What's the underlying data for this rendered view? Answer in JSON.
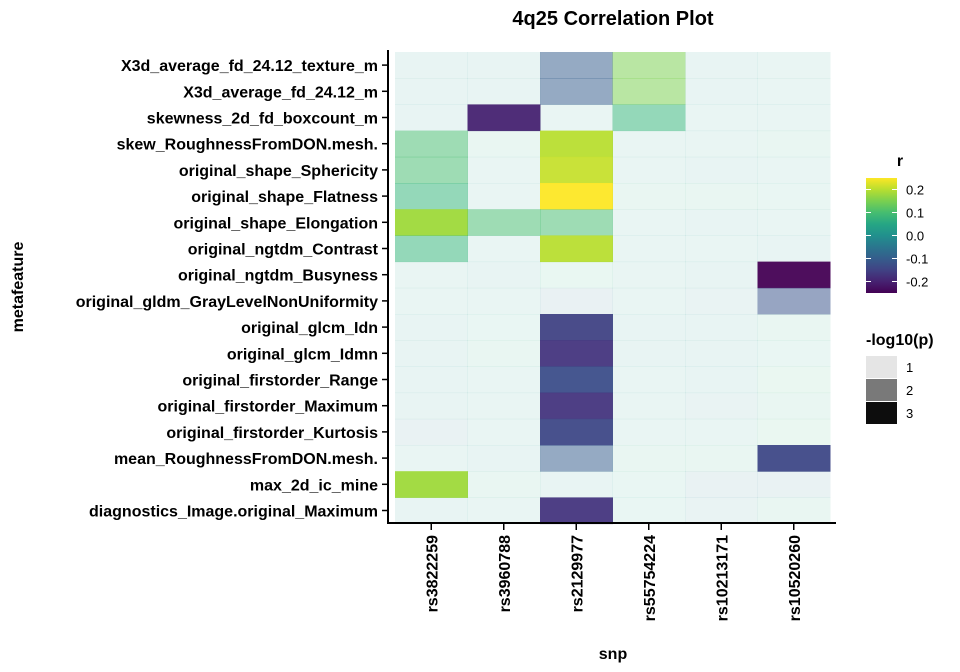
{
  "chart_data": {
    "type": "heatmap",
    "title": "4q25 Correlation Plot",
    "xlabel": "snp",
    "ylabel": "metafeature",
    "x": [
      "rs3822259",
      "rs3960788",
      "rs2129977",
      "rs55754224",
      "rs10213171",
      "rs10520260"
    ],
    "y": [
      "X3d_average_fd_24.12_texture_m",
      "X3d_average_fd_24.12_m",
      "skewness_2d_fd_boxcount_m",
      "skew_RoughnessFromDON.mesh.",
      "original_shape_Sphericity",
      "original_shape_Flatness",
      "original_shape_Elongation",
      "original_ngtdm_Contrast",
      "original_ngtdm_Busyness",
      "original_gldm_GrayLevelNonUniformity",
      "original_glcm_Idn",
      "original_glcm_Idmn",
      "original_firstorder_Range",
      "original_firstorder_Maximum",
      "original_firstorder_Kurtosis",
      "mean_RoughnessFromDON.mesh.",
      "max_2d_ic_mine",
      "diagnostics_Image.original_Maximum"
    ],
    "r_values": [
      [
        0.01,
        0.0,
        -0.1,
        0.15,
        0.01,
        0.02
      ],
      [
        0.01,
        0.0,
        -0.1,
        0.15,
        0.01,
        0.02
      ],
      [
        0.0,
        -0.2,
        0.03,
        0.08,
        0.02,
        0.02
      ],
      [
        0.1,
        0.05,
        0.2,
        0.03,
        0.02,
        0.06
      ],
      [
        0.1,
        0.02,
        0.21,
        0.03,
        0.01,
        0.02
      ],
      [
        0.08,
        0.02,
        0.25,
        0.06,
        0.06,
        0.04
      ],
      [
        0.18,
        0.1,
        0.1,
        0.02,
        0.01,
        0.02
      ],
      [
        0.08,
        0.02,
        0.2,
        0.02,
        0.02,
        0.0
      ],
      [
        0.02,
        0.0,
        0.07,
        0.02,
        0.0,
        -0.25
      ],
      [
        0.02,
        0.02,
        -0.06,
        0.02,
        -0.01,
        -0.12
      ],
      [
        0.0,
        0.04,
        -0.15,
        0.01,
        0.01,
        0.05
      ],
      [
        0.0,
        0.06,
        -0.17,
        0.01,
        0.01,
        0.04
      ],
      [
        0.0,
        0.03,
        -0.13,
        0.03,
        0.01,
        0.08
      ],
      [
        0.0,
        0.03,
        -0.17,
        0.03,
        -0.01,
        0.05
      ],
      [
        -0.04,
        0.03,
        -0.14,
        0.02,
        0.02,
        0.08
      ],
      [
        0.02,
        0.0,
        -0.1,
        0.06,
        0.06,
        -0.14
      ],
      [
        0.18,
        0.05,
        0.01,
        0.04,
        -0.03,
        -0.03
      ],
      [
        0.0,
        0.03,
        -0.17,
        0.04,
        -0.01,
        0.05
      ]
    ],
    "neglog10p_values": [
      [
        1,
        1,
        2,
        2,
        1,
        1
      ],
      [
        1,
        1,
        2,
        2,
        1,
        1
      ],
      [
        1,
        3,
        1,
        2,
        1,
        1
      ],
      [
        2,
        1,
        3,
        1,
        1,
        1
      ],
      [
        2,
        1,
        3,
        1,
        1,
        1
      ],
      [
        2,
        1,
        3,
        1,
        1,
        1
      ],
      [
        3,
        2,
        2,
        1,
        1,
        1
      ],
      [
        2,
        1,
        3,
        1,
        1,
        1
      ],
      [
        1,
        1,
        1,
        1,
        1,
        3
      ],
      [
        1,
        1,
        1,
        1,
        1,
        2
      ],
      [
        1,
        1,
        3,
        1,
        1,
        1
      ],
      [
        1,
        1,
        3,
        1,
        1,
        1
      ],
      [
        1,
        1,
        3,
        1,
        1,
        1
      ],
      [
        1,
        1,
        3,
        1,
        1,
        1
      ],
      [
        1,
        1,
        3,
        1,
        1,
        1
      ],
      [
        1,
        1,
        2,
        1,
        1,
        3
      ],
      [
        3,
        1,
        1,
        1,
        1,
        1
      ],
      [
        1,
        1,
        3,
        1,
        1,
        1
      ]
    ],
    "color_scale": "viridis",
    "color_legend": {
      "title": "r",
      "ticks": [
        0.2,
        0.1,
        0.0,
        -0.1,
        -0.2
      ],
      "tick_labels": [
        "0.2",
        "0.1",
        "0.0",
        "-0.1",
        "-0.2"
      ],
      "range": [
        -0.25,
        0.25
      ]
    },
    "alpha_legend": {
      "title": "-log10(p)",
      "levels": [
        1,
        2,
        3
      ],
      "labels": [
        "1",
        "2",
        "3"
      ]
    },
    "grid": false,
    "legend_position": "right"
  }
}
